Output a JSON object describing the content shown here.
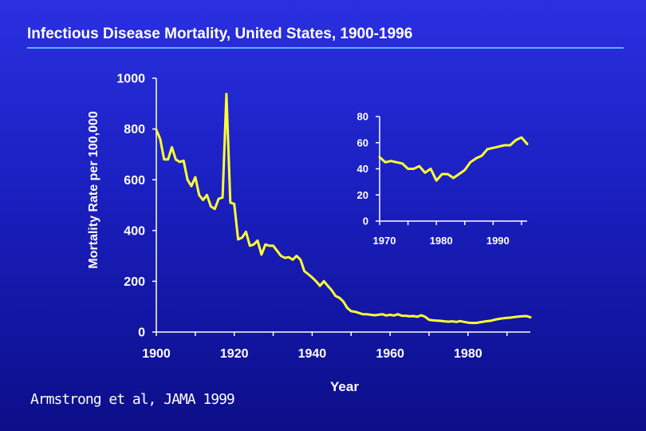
{
  "slide": {
    "title": "Infectious Disease Mortality, United States, 1900-1996",
    "citation": "Armstrong et al, JAMA 1999",
    "colors": {
      "line": "#ffff33",
      "text": "#ffffff",
      "rule": "#5fb0ff"
    }
  },
  "chart_data": [
    {
      "type": "line",
      "xlabel": "Year",
      "ylabel": "Mortality Rate per 100,000",
      "xlim": [
        1900,
        1996
      ],
      "ylim": [
        0,
        1000
      ],
      "xticks": [
        1900,
        1920,
        1940,
        1960,
        1980
      ],
      "yticks": [
        0,
        200,
        400,
        600,
        800,
        1000
      ],
      "grid": false,
      "x": [
        1900,
        1901,
        1902,
        1903,
        1904,
        1905,
        1906,
        1907,
        1908,
        1909,
        1910,
        1911,
        1912,
        1913,
        1914,
        1915,
        1916,
        1917,
        1918,
        1919,
        1920,
        1921,
        1922,
        1923,
        1924,
        1925,
        1926,
        1927,
        1928,
        1929,
        1930,
        1931,
        1932,
        1933,
        1934,
        1935,
        1936,
        1937,
        1938,
        1939,
        1940,
        1941,
        1942,
        1943,
        1944,
        1945,
        1946,
        1947,
        1948,
        1949,
        1950,
        1951,
        1952,
        1953,
        1954,
        1955,
        1956,
        1957,
        1958,
        1959,
        1960,
        1961,
        1962,
        1963,
        1964,
        1965,
        1966,
        1967,
        1968,
        1969,
        1970,
        1971,
        1972,
        1973,
        1974,
        1975,
        1976,
        1977,
        1978,
        1979,
        1980,
        1981,
        1982,
        1983,
        1984,
        1985,
        1986,
        1987,
        1988,
        1989,
        1990,
        1991,
        1992,
        1993,
        1994,
        1995,
        1996
      ],
      "values": [
        797,
        760,
        680,
        680,
        728,
        680,
        670,
        675,
        600,
        575,
        610,
        540,
        520,
        540,
        495,
        485,
        525,
        530,
        938,
        510,
        505,
        365,
        372,
        395,
        340,
        345,
        360,
        305,
        345,
        340,
        340,
        320,
        300,
        292,
        295,
        285,
        300,
        285,
        240,
        228,
        215,
        200,
        182,
        200,
        182,
        165,
        142,
        135,
        120,
        95,
        82,
        80,
        75,
        70,
        70,
        68,
        66,
        68,
        70,
        65,
        68,
        65,
        70,
        64,
        64,
        62,
        63,
        60,
        66,
        60,
        48,
        46,
        45,
        44,
        42,
        41,
        42,
        40,
        43,
        40,
        37,
        36,
        36,
        38,
        41,
        43,
        45,
        49,
        52,
        54,
        56,
        57,
        59,
        61,
        62,
        63,
        58
      ]
    },
    {
      "type": "line",
      "xlim": [
        1970,
        1996
      ],
      "ylim": [
        0,
        80
      ],
      "xticks": [
        1970,
        1980,
        1990
      ],
      "yticks": [
        0,
        20,
        40,
        60,
        80
      ],
      "grid": false,
      "x": [
        1970,
        1971,
        1972,
        1973,
        1974,
        1975,
        1976,
        1977,
        1978,
        1979,
        1980,
        1981,
        1982,
        1983,
        1984,
        1985,
        1986,
        1987,
        1988,
        1989,
        1990,
        1991,
        1992,
        1993,
        1994,
        1995,
        1996
      ],
      "values": [
        49,
        45,
        46,
        45,
        44,
        40,
        40,
        42,
        37,
        40,
        31,
        36,
        36,
        33,
        36,
        39,
        45,
        48,
        50,
        55,
        56,
        57,
        58,
        58,
        62,
        64,
        59
      ]
    }
  ]
}
